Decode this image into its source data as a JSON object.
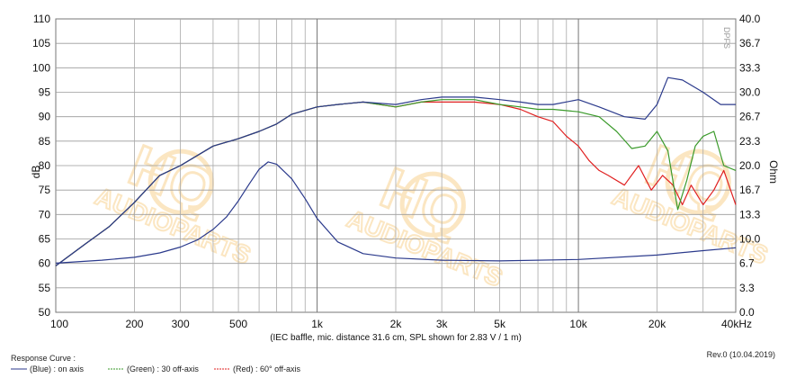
{
  "chart_data": {
    "type": "line",
    "x_scale": "log",
    "x_unit": "Hz",
    "xlim": [
      100,
      40000
    ],
    "ylim_left": [
      50,
      110
    ],
    "ylim_right": [
      0,
      40
    ],
    "ylabel_left": "dB",
    "ylabel_right": "Ohm",
    "grid": true,
    "x_ticks": [
      {
        "value": 100,
        "label": "100"
      },
      {
        "value": 200,
        "label": "200"
      },
      {
        "value": 300,
        "label": "300"
      },
      {
        "value": 500,
        "label": "500"
      },
      {
        "value": 1000,
        "label": "1k"
      },
      {
        "value": 2000,
        "label": "2k"
      },
      {
        "value": 3000,
        "label": "3k"
      },
      {
        "value": 5000,
        "label": "5k"
      },
      {
        "value": 10000,
        "label": "10k"
      },
      {
        "value": 20000,
        "label": "20k"
      },
      {
        "value": 40000,
        "label": "40kHz"
      }
    ],
    "y_ticks_left": [
      "50",
      "55",
      "60",
      "65",
      "70",
      "75",
      "80",
      "85",
      "90",
      "95",
      "100",
      "105",
      "110"
    ],
    "y_ticks_right": [
      "0.0",
      "3.3",
      "6.7",
      "10.0",
      "13.3",
      "16.7",
      "20.0",
      "23.3",
      "26.7",
      "30.0",
      "33.3",
      "36.7",
      "40.0"
    ],
    "caption": "(IEC baffle, mic. distance 31.6 cm, SPL shown for 2.83 V / 1 m)",
    "series": [
      {
        "name": "(Blue) : on axis",
        "axis": "left",
        "color": "#2b3a8c",
        "x": [
          100,
          130,
          160,
          200,
          250,
          300,
          400,
          500,
          600,
          700,
          800,
          1000,
          1200,
          1500,
          2000,
          2500,
          3000,
          3500,
          4000,
          5000,
          6000,
          7000,
          8000,
          10000,
          12000,
          15000,
          18000,
          20000,
          22000,
          25000,
          30000,
          35000,
          40000
        ],
        "y": [
          59.5,
          64,
          67.5,
          72.5,
          78,
          80,
          84,
          85.5,
          87,
          88.5,
          90.5,
          92,
          92.5,
          93,
          92.5,
          93.5,
          94,
          94,
          94,
          93.5,
          93,
          92.5,
          92.5,
          93.5,
          92,
          90,
          89.5,
          92.5,
          98,
          97.5,
          95,
          92.5,
          92.5
        ]
      },
      {
        "name": "(Green) : 30 off-axis",
        "axis": "left",
        "color": "#3a9a2a",
        "x": [
          100,
          130,
          160,
          200,
          250,
          300,
          400,
          500,
          600,
          700,
          800,
          1000,
          1200,
          1500,
          2000,
          2500,
          3000,
          3500,
          4000,
          5000,
          6000,
          7000,
          8000,
          10000,
          12000,
          14000,
          16000,
          18000,
          20000,
          22000,
          24000,
          26000,
          28000,
          30000,
          33000,
          36000,
          40000
        ],
        "y": [
          59.5,
          64,
          67.5,
          72.5,
          78,
          80,
          84,
          85.5,
          87,
          88.5,
          90.5,
          92,
          92.5,
          93,
          92,
          93,
          93.5,
          93.5,
          93.5,
          92.5,
          92,
          91.5,
          91.5,
          91,
          90,
          87,
          83.5,
          84,
          87,
          83,
          71,
          77,
          84,
          86,
          87,
          80,
          79
        ]
      },
      {
        "name": "(Red) : 60° off-axis",
        "axis": "left",
        "color": "#e02020",
        "x": [
          100,
          130,
          160,
          200,
          250,
          300,
          400,
          500,
          600,
          700,
          800,
          1000,
          1200,
          1500,
          2000,
          2500,
          3000,
          3500,
          4000,
          5000,
          6000,
          7000,
          8000,
          9000,
          10000,
          11000,
          12000,
          13000,
          15000,
          17000,
          19000,
          21000,
          23000,
          25000,
          27000,
          30000,
          33000,
          36000,
          40000
        ],
        "y": [
          59.5,
          64,
          67.5,
          72.5,
          78,
          80,
          84,
          85.5,
          87,
          88.5,
          90.5,
          92,
          92.5,
          93,
          92,
          93,
          93,
          93,
          93,
          92.5,
          91.5,
          90,
          89,
          86,
          84,
          81,
          79,
          78,
          76,
          80,
          75,
          78,
          76,
          72,
          76,
          72,
          75,
          79,
          72
        ]
      },
      {
        "name": "Impedance",
        "axis": "right",
        "color": "#2b3a8c",
        "x": [
          100,
          150,
          200,
          250,
          300,
          350,
          400,
          450,
          500,
          550,
          600,
          650,
          700,
          800,
          900,
          1000,
          1200,
          1500,
          2000,
          3000,
          5000,
          10000,
          20000,
          30000,
          40000
        ],
        "y": [
          6.7,
          7.1,
          7.5,
          8.1,
          8.9,
          9.9,
          11.3,
          13.0,
          15.2,
          17.5,
          19.5,
          20.5,
          20.2,
          18.2,
          15.5,
          12.8,
          9.6,
          8.0,
          7.4,
          7.1,
          7.0,
          7.2,
          7.8,
          8.4,
          8.8
        ]
      }
    ]
  },
  "legend": {
    "title": "Response Curve :",
    "items": [
      {
        "label": "(Blue)  : on axis",
        "color": "#2b3a8c"
      },
      {
        "label": "(Green) : 30 off-axis",
        "color": "#3a9a2a"
      },
      {
        "label": "(Red) : 60° off-axis",
        "color": "#e02020"
      }
    ]
  },
  "revision": "Rev.0 (10.04.2019)",
  "corner_mark": "DPFS",
  "watermark": {
    "logo": "HQ",
    "text": "AUDIOPARTS",
    "color": "#f7c97a"
  }
}
